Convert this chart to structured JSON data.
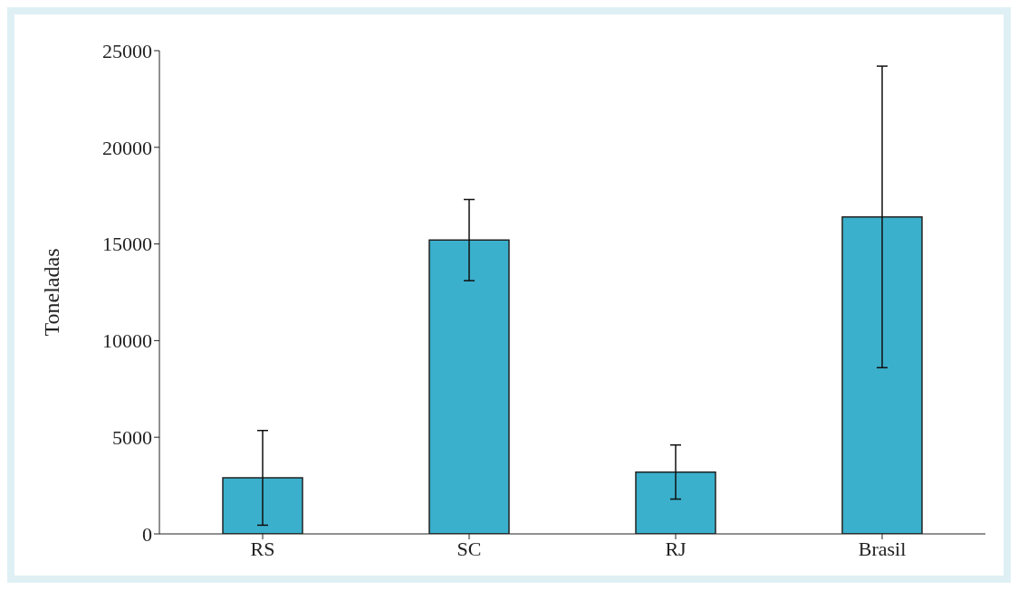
{
  "chart_data": {
    "type": "bar",
    "ylabel": "Toneladas",
    "categories": [
      "RS",
      "SC",
      "RJ",
      "Brasil"
    ],
    "values": [
      2900,
      15200,
      3200,
      16400
    ],
    "errors": [
      2450,
      2100,
      1400,
      7800
    ],
    "color": "#3ab0cc",
    "ylim": [
      0,
      25000
    ],
    "yticks": [
      0,
      5000,
      10000,
      15000,
      20000,
      25000
    ],
    "grid": false,
    "legend": false
  }
}
